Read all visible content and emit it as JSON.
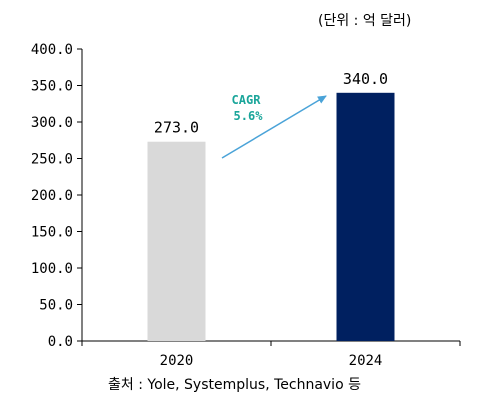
{
  "chart_data": {
    "type": "bar",
    "categories": [
      "2020",
      "2024"
    ],
    "values": [
      273.0,
      340.0
    ],
    "data_labels": [
      "273.0",
      "340.0"
    ],
    "bar_colors": [
      "#d9d9d9",
      "#002060"
    ],
    "ylim": [
      0,
      400
    ],
    "yticks": [
      "0.0",
      "50.0",
      "100.0",
      "150.0",
      "200.0",
      "250.0",
      "300.0",
      "350.0",
      "400.0"
    ],
    "grid": false,
    "unit_note": "(단위 : 억 달러)",
    "annotation": {
      "line1": "CAGR",
      "line2": "5.6%",
      "color": "#1aa59a",
      "arrow_color": "#4aa3d8"
    },
    "source": "출처 : Yole, Systemplus, Technavio 등"
  }
}
